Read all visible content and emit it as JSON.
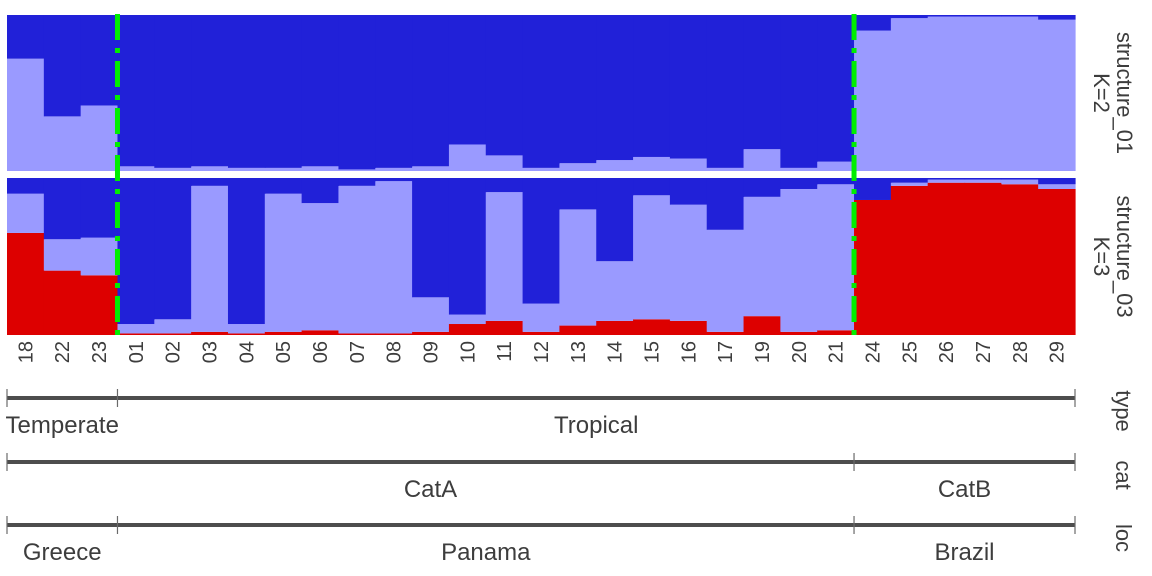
{
  "chart_data": {
    "type": "bar",
    "stacked": true,
    "categories": [
      "18",
      "22",
      "23",
      "01",
      "02",
      "03",
      "04",
      "05",
      "06",
      "07",
      "08",
      "09",
      "10",
      "11",
      "12",
      "13",
      "14",
      "15",
      "16",
      "17",
      "19",
      "20",
      "21",
      "24",
      "25",
      "26",
      "27",
      "28",
      "29"
    ],
    "panels": [
      {
        "label_line1": "structure_01",
        "label_line2": "K=2",
        "series": [
          {
            "color": "#9a9aff",
            "values": [
              0.72,
              0.35,
              0.42,
              0.03,
              0.02,
              0.03,
              0.02,
              0.02,
              0.03,
              0.01,
              0.02,
              0.03,
              0.17,
              0.1,
              0.02,
              0.05,
              0.07,
              0.09,
              0.08,
              0.02,
              0.14,
              0.02,
              0.06,
              0.9,
              0.98,
              0.99,
              0.99,
              0.99,
              0.97
            ]
          },
          {
            "color": "#2121d8",
            "values": [
              0.28,
              0.65,
              0.58,
              0.97,
              0.98,
              0.97,
              0.98,
              0.98,
              0.97,
              0.99,
              0.98,
              0.97,
              0.83,
              0.9,
              0.98,
              0.95,
              0.93,
              0.91,
              0.92,
              0.98,
              0.86,
              0.98,
              0.94,
              0.1,
              0.02,
              0.01,
              0.01,
              0.01,
              0.03
            ]
          }
        ]
      },
      {
        "label_line1": "structure_03",
        "label_line2": "K=3",
        "series": [
          {
            "color": "#dd0000",
            "values": [
              0.65,
              0.41,
              0.38,
              0.01,
              0.01,
              0.02,
              0.01,
              0.02,
              0.03,
              0.01,
              0.01,
              0.02,
              0.07,
              0.09,
              0.02,
              0.06,
              0.09,
              0.1,
              0.09,
              0.02,
              0.12,
              0.02,
              0.03,
              0.86,
              0.95,
              0.97,
              0.97,
              0.96,
              0.93
            ]
          },
          {
            "color": "#9a9aff",
            "values": [
              0.25,
              0.2,
              0.24,
              0.06,
              0.09,
              0.93,
              0.06,
              0.88,
              0.81,
              0.94,
              0.97,
              0.22,
              0.06,
              0.82,
              0.18,
              0.74,
              0.38,
              0.79,
              0.74,
              0.65,
              0.76,
              0.91,
              0.93,
              0.0,
              0.02,
              0.02,
              0.02,
              0.03,
              0.03
            ]
          },
          {
            "color": "#2121d8",
            "values": [
              0.1,
              0.39,
              0.38,
              0.93,
              0.9,
              0.05,
              0.93,
              0.1,
              0.16,
              0.05,
              0.02,
              0.76,
              0.87,
              0.09,
              0.8,
              0.2,
              0.53,
              0.11,
              0.17,
              0.33,
              0.12,
              0.07,
              0.04,
              0.14,
              0.03,
              0.01,
              0.01,
              0.01,
              0.04
            ]
          }
        ]
      }
    ],
    "separators_after_index": [
      2,
      22
    ],
    "separator_color": "#00ee00",
    "annotation_tracks": [
      {
        "name": "type",
        "groups": [
          {
            "label": "Temperate",
            "start": 0,
            "end": 2
          },
          {
            "label": "Tropical",
            "start": 3,
            "end": 28
          }
        ]
      },
      {
        "name": "cat",
        "groups": [
          {
            "label": "CatA",
            "start": 0,
            "end": 22
          },
          {
            "label": "CatB",
            "start": 23,
            "end": 28
          }
        ]
      },
      {
        "name": "loc",
        "groups": [
          {
            "label": "Greece",
            "start": 0,
            "end": 2
          },
          {
            "label": "Panama",
            "start": 3,
            "end": 22
          },
          {
            "label": "Brazil",
            "start": 23,
            "end": 28
          }
        ]
      }
    ]
  }
}
